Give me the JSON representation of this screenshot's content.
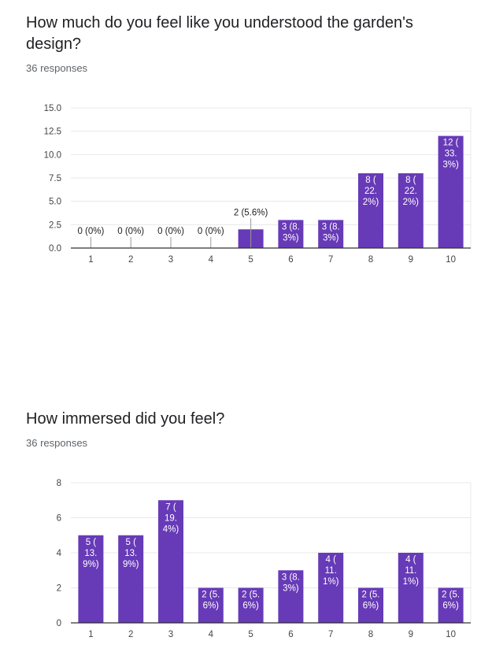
{
  "sections": [
    {
      "title": "How much do you feel like you understood the garden's design?",
      "responses": "36 responses"
    },
    {
      "title": "How immersed did you feel?",
      "responses": "36 responses"
    }
  ],
  "colors": {
    "bar": "#673ab7",
    "grid": "#e8e8e8",
    "axis": "#333333"
  },
  "chart_data": [
    {
      "type": "bar",
      "categories": [
        "1",
        "2",
        "3",
        "4",
        "5",
        "6",
        "7",
        "8",
        "9",
        "10"
      ],
      "values": [
        0,
        0,
        0,
        0,
        2,
        3,
        3,
        8,
        8,
        12
      ],
      "labels": [
        "0 (0%)",
        "0 (0%)",
        "0 (0%)",
        "0 (0%)",
        "2 (5.6%)",
        "3 (8.3%)",
        "3 (8.3%)",
        "8 (22.2%)",
        "8 (22.2%)",
        "12 (33.3%)"
      ],
      "yticks": [
        "0.0",
        "2.5",
        "5.0",
        "7.5",
        "10.0",
        "12.5",
        "15.0"
      ],
      "ylim": [
        0,
        15
      ],
      "grid": true
    },
    {
      "type": "bar",
      "categories": [
        "1",
        "2",
        "3",
        "4",
        "5",
        "6",
        "7",
        "8",
        "9",
        "10"
      ],
      "values": [
        5,
        5,
        7,
        2,
        2,
        3,
        4,
        2,
        4,
        2
      ],
      "labels": [
        "5 (13.9%)",
        "5 (13.9%)",
        "7 (19.4%)",
        "2 (5.6%)",
        "2 (5.6%)",
        "3 (8.3%)",
        "4 (11.1%)",
        "2 (5.6%)",
        "4 (11.1%)",
        "2 (5.6%)"
      ],
      "yticks": [
        "0",
        "2",
        "4",
        "6",
        "8"
      ],
      "ylim": [
        0,
        8
      ],
      "grid": true
    }
  ]
}
